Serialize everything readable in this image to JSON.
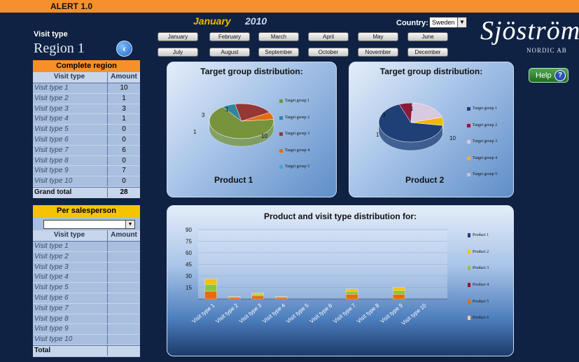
{
  "app": {
    "title": "ALERT 1.0"
  },
  "header": {
    "month": "January",
    "year": "2010",
    "country_label": "Country:",
    "country_value": "Sweden",
    "logo_main": "Sjöströms",
    "logo_sub": "NORDIC AB"
  },
  "months": [
    "January",
    "February",
    "March",
    "April",
    "May",
    "June",
    "July",
    "August",
    "September",
    "October",
    "November",
    "December"
  ],
  "sidebar": {
    "visit_type_label": "Visit type",
    "region_name": "Region 1",
    "complete_region": {
      "title": "Complete region",
      "col1": "Visit type",
      "col2": "Amount",
      "rows": [
        {
          "label": "Visit type 1",
          "amount": "10"
        },
        {
          "label": "Visit type 2",
          "amount": "1"
        },
        {
          "label": "Visit type 3",
          "amount": "3"
        },
        {
          "label": "Visit type 4",
          "amount": "1"
        },
        {
          "label": "Visit type 5",
          "amount": "0"
        },
        {
          "label": "Visit type 6",
          "amount": "0"
        },
        {
          "label": "Visit type 7",
          "amount": "6"
        },
        {
          "label": "Visit type 8",
          "amount": "0"
        },
        {
          "label": "Visit type 9",
          "amount": "7"
        },
        {
          "label": "Visit type 10",
          "amount": "0"
        }
      ],
      "total_label": "Grand total",
      "total_value": "28"
    },
    "per_salesperson": {
      "title": "Per salesperson",
      "col1": "Visit type",
      "col2": "Amount",
      "rows": [
        "Visit type 1",
        "Visit type 2",
        "Visit type 3",
        "Visit type 4",
        "Visit type 5",
        "Visit type 6",
        "Visit type 7",
        "Visit type 8",
        "Visit type 9",
        "Visit type 10"
      ],
      "total_label": "Total"
    }
  },
  "help": {
    "label": "Help",
    "icon": "?"
  },
  "colors": {
    "tg1": "#77933c",
    "tg2": "#31859c",
    "tg3": "#953735",
    "tg4": "#e46c0a",
    "tg5": "#4a9fdc",
    "p1": "#1f3f77",
    "p2": "#8b1a3a",
    "p3": "#d8c8e0",
    "p4": "#f0b800",
    "p5": "#c8c0d8",
    "pr1": "#1f3f77",
    "pr2": "#f5c400",
    "pr3": "#8cc63f",
    "pr4": "#8b1a2a",
    "pr5": "#e46c0a",
    "pr6": "#f7caa0"
  },
  "chart_data": [
    {
      "type": "pie",
      "title": "Target group distribution:",
      "subtitle": "Product 1",
      "categories": [
        "Target group 1",
        "Target group 2",
        "Target group 3",
        "Target group 4",
        "Target group 5"
      ],
      "values": [
        10,
        1,
        3,
        1,
        0
      ],
      "data_labels": [
        "10",
        "1",
        "3",
        "1",
        ""
      ]
    },
    {
      "type": "pie",
      "title": "Target group distribution:",
      "subtitle": "Product 2",
      "categories": [
        "Target group 1",
        "Target group 2",
        "Target group 3",
        "Target group 4",
        "Target group 5"
      ],
      "values": [
        10,
        1,
        3,
        1,
        0
      ],
      "data_labels": [
        "10",
        "1",
        "3",
        "1",
        ""
      ]
    },
    {
      "type": "bar",
      "title": "Product and visit type distribution for:",
      "categories": [
        "Visit type 1",
        "Visit type 2",
        "Visit type 3",
        "Visit type 4",
        "Visit type 5",
        "Visit type 6",
        "Visit type 7",
        "Visit type 8",
        "Visit type 9",
        "Visit type 10"
      ],
      "ylim": [
        0,
        90
      ],
      "yticks": [
        "90",
        "75",
        "60",
        "45",
        "30",
        "15"
      ],
      "series": [
        {
          "name": "Product 1",
          "values": [
            0,
            0,
            0,
            0,
            0,
            0,
            0,
            0,
            0,
            0
          ]
        },
        {
          "name": "Product 2",
          "values": [
            7,
            1,
            2,
            1,
            0,
            0,
            3,
            0,
            4,
            0
          ]
        },
        {
          "name": "Product 3",
          "values": [
            9,
            0,
            2,
            0,
            0,
            0,
            4,
            0,
            5,
            0
          ]
        },
        {
          "name": "Product 4",
          "values": [
            0,
            0,
            0,
            0,
            0,
            0,
            0,
            0,
            0,
            0
          ]
        },
        {
          "name": "Product 5",
          "values": [
            10,
            2,
            4,
            2,
            0,
            0,
            6,
            0,
            6,
            0
          ]
        },
        {
          "name": "Product 6",
          "values": [
            0,
            0,
            0,
            0,
            0,
            0,
            0,
            0,
            0,
            0
          ]
        }
      ]
    }
  ]
}
